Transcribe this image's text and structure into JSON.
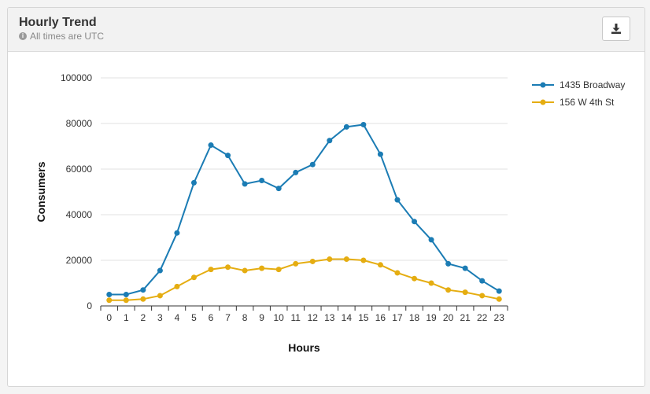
{
  "panel": {
    "title": "Hourly Trend",
    "subtitle": "All times are UTC",
    "info_icon": "info-icon",
    "download_icon": "download-icon"
  },
  "colors": {
    "series_1": "#1b7cb4",
    "series_2": "#e5ad11",
    "grid": "#e0e0e0",
    "axis": "#333333"
  },
  "chart_data": {
    "type": "line",
    "xlabel": "Hours",
    "ylabel": "Consumers",
    "x": [
      0,
      1,
      2,
      3,
      4,
      5,
      6,
      7,
      8,
      9,
      10,
      11,
      12,
      13,
      14,
      15,
      16,
      17,
      18,
      19,
      20,
      21,
      22,
      23
    ],
    "ylim": [
      0,
      100000
    ],
    "yticks": [
      0,
      20000,
      40000,
      60000,
      80000,
      100000
    ],
    "grid": true,
    "legend_position": "top-right",
    "series": [
      {
        "name": "1435 Broadway",
        "values": [
          5000,
          5000,
          7000,
          15500,
          32000,
          54000,
          70500,
          66000,
          53500,
          55000,
          51500,
          58500,
          62000,
          72500,
          78500,
          79500,
          66500,
          46500,
          37000,
          29000,
          18500,
          16500,
          11000,
          6500
        ]
      },
      {
        "name": "156 W 4th St",
        "values": [
          2500,
          2500,
          3000,
          4500,
          8500,
          12500,
          16000,
          17000,
          15500,
          16500,
          16000,
          18500,
          19500,
          20500,
          20500,
          20000,
          18000,
          14500,
          12000,
          10000,
          7000,
          6000,
          4500,
          3000
        ]
      }
    ]
  }
}
